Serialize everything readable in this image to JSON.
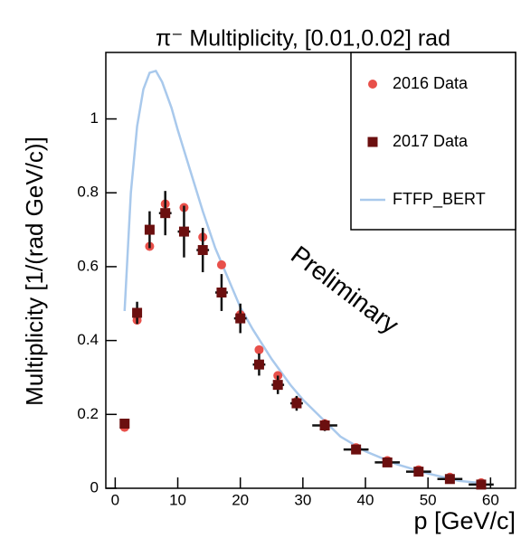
{
  "chart_data": {
    "type": "scatter",
    "title": "π⁻ Multiplicity, [0.01,0.02] rad",
    "x_label": "p [GeV/c]",
    "y_label": "Multiplicity [1/(rad GeV/c)]",
    "annotation": "Preliminary",
    "xlim": [
      -1.5,
      64
    ],
    "ylim": [
      0,
      1.18
    ],
    "xticks": [
      0,
      10,
      20,
      30,
      40,
      50,
      60
    ],
    "yticks": [
      0,
      0.2,
      0.4,
      0.6,
      0.8,
      1
    ],
    "legend": "upper right",
    "x": [
      1.5,
      3.5,
      5.5,
      8,
      11,
      14,
      17,
      20,
      23,
      26,
      29,
      33.5,
      38.5,
      43.5,
      48.5,
      53.5,
      58.5
    ],
    "xerr": [
      0.5,
      0.5,
      0.5,
      1,
      1,
      1,
      1,
      1,
      1,
      1,
      1,
      2,
      2,
      2,
      2,
      2,
      2
    ],
    "series": [
      {
        "name": "2016 Data",
        "color": "#e8504a",
        "marker": "circle",
        "values": [
          0.165,
          0.455,
          0.655,
          0.77,
          0.76,
          0.68,
          0.605,
          0.47,
          0.375,
          0.305,
          0.235,
          0.175,
          0.11,
          0.075,
          0.05,
          0.03,
          0.015
        ]
      },
      {
        "name": "2017 Data",
        "color": "#6b0f0f",
        "marker": "square",
        "values": [
          0.175,
          0.475,
          0.7,
          0.745,
          0.695,
          0.645,
          0.53,
          0.46,
          0.335,
          0.28,
          0.23,
          0.17,
          0.105,
          0.07,
          0.045,
          0.025,
          0.01
        ],
        "errors": [
          0.01,
          0.03,
          0.05,
          0.06,
          0.07,
          0.06,
          0.05,
          0.04,
          0.03,
          0.025,
          0.02,
          0.015,
          0.01,
          0.008,
          0.006,
          0.005,
          0.004
        ]
      },
      {
        "name": "FTFP_BERT",
        "color": "#a9c9ec",
        "marker": "line",
        "x": [
          1.5,
          2.5,
          3.5,
          4.5,
          5.5,
          6.5,
          7.5,
          9,
          10,
          12,
          14,
          16,
          18,
          20,
          22,
          25,
          28,
          30,
          33,
          36,
          40,
          45,
          50,
          55,
          58
        ],
        "values": [
          0.48,
          0.8,
          0.98,
          1.08,
          1.125,
          1.13,
          1.1,
          1.03,
          0.97,
          0.86,
          0.75,
          0.65,
          0.57,
          0.49,
          0.43,
          0.35,
          0.28,
          0.24,
          0.19,
          0.14,
          0.1,
          0.065,
          0.04,
          0.02,
          0.015
        ]
      }
    ]
  }
}
